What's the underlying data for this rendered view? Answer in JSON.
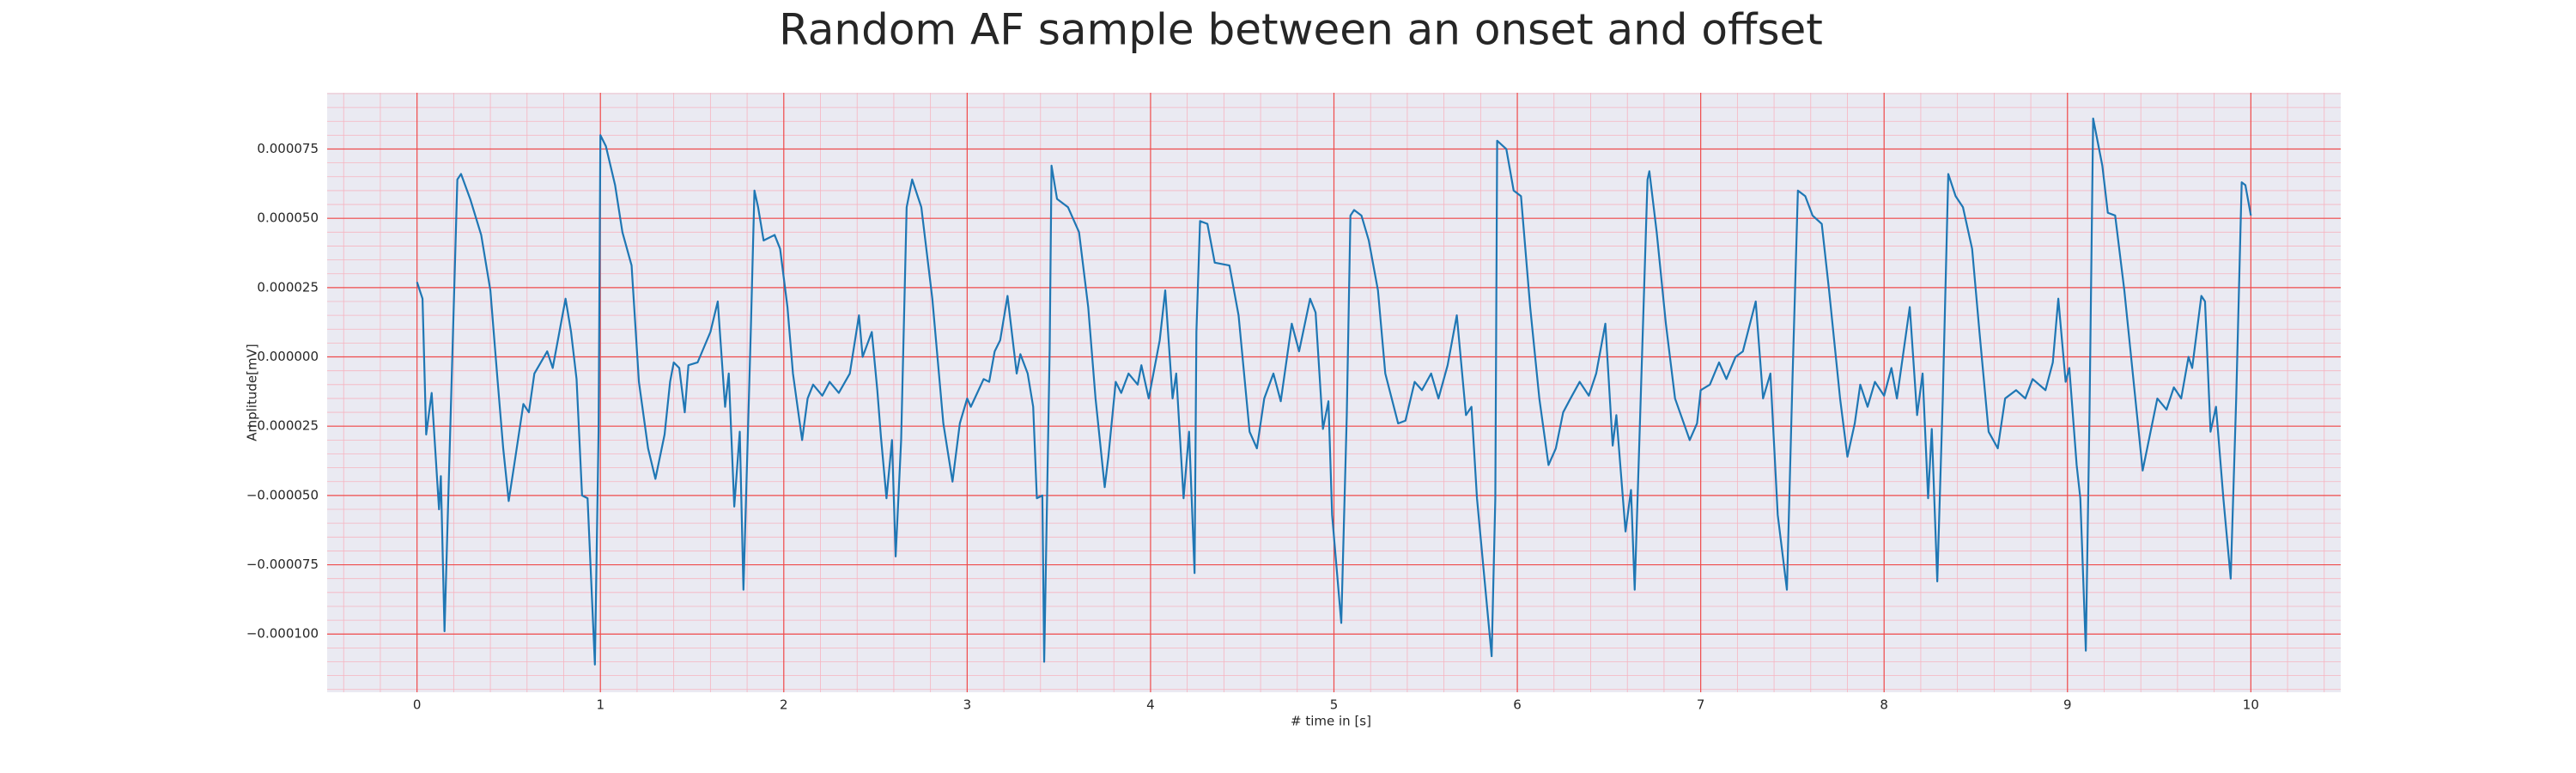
{
  "chart_data": {
    "type": "line",
    "title": "Random AF sample between an onset and offset",
    "xlabel": "# time in [s]",
    "ylabel": "Amplitude[mV]",
    "color": "#1f77b4",
    "grid": true,
    "minor_grid": true,
    "xlim": [
      -0.49,
      10.49
    ],
    "ylim": [
      -0.000121,
      9.53e-05
    ],
    "xticks": [
      0,
      1,
      2,
      3,
      4,
      5,
      6,
      7,
      8,
      9,
      10
    ],
    "yticks": [
      {
        "value": -0.0001,
        "label": "−0.000100"
      },
      {
        "value": -7.5e-05,
        "label": "−0.000075"
      },
      {
        "value": -5e-05,
        "label": "−0.000050"
      },
      {
        "value": -2.5e-05,
        "label": "−0.000025"
      },
      {
        "value": 0,
        "label": "0.000000"
      },
      {
        "value": 2.5e-05,
        "label": "0.000025"
      },
      {
        "value": 5e-05,
        "label": "0.000050"
      },
      {
        "value": 7.5e-05,
        "label": "0.000075"
      }
    ],
    "x": [
      0,
      0.03,
      0.05,
      0.08,
      0.12,
      0.13,
      0.15,
      0.22,
      0.24,
      0.29,
      0.35,
      0.4,
      0.44,
      0.47,
      0.5,
      0.53,
      0.58,
      0.61,
      0.64,
      0.71,
      0.74,
      0.81,
      0.84,
      0.87,
      0.9,
      0.93,
      0.97,
      0.99,
      1.0,
      1.03,
      1.08,
      1.12,
      1.17,
      1.21,
      1.26,
      1.3,
      1.35,
      1.38,
      1.4,
      1.43,
      1.46,
      1.48,
      1.53,
      1.6,
      1.64,
      1.68,
      1.7,
      1.73,
      1.76,
      1.78,
      1.82,
      1.84,
      1.86,
      1.89,
      1.95,
      1.98,
      2.02,
      2.05,
      2.1,
      2.13,
      2.16,
      2.21,
      2.25,
      2.3,
      2.36,
      2.41,
      2.43,
      2.48,
      2.51,
      2.53,
      2.56,
      2.59,
      2.61,
      2.64,
      2.67,
      2.7,
      2.75,
      2.81,
      2.87,
      2.92,
      2.96,
      3.0,
      3.02,
      3.09,
      3.12,
      3.15,
      3.18,
      3.22,
      3.27,
      3.29,
      3.33,
      3.36,
      3.38,
      3.41,
      3.42,
      3.45,
      3.46,
      3.49,
      3.55,
      3.61,
      3.66,
      3.7,
      3.75,
      3.77,
      3.81,
      3.84,
      3.88,
      3.93,
      3.95,
      3.99,
      4.05,
      4.08,
      4.12,
      4.14,
      4.18,
      4.21,
      4.24,
      4.25,
      4.27,
      4.31,
      4.35,
      4.43,
      4.48,
      4.54,
      4.58,
      4.62,
      4.67,
      4.71,
      4.77,
      4.81,
      4.87,
      4.9,
      4.94,
      4.97,
      4.99,
      5.04,
      5.07,
      5.09,
      5.11,
      5.15,
      5.19,
      5.24,
      5.28,
      5.35,
      5.39,
      5.44,
      5.48,
      5.53,
      5.57,
      5.62,
      5.67,
      5.72,
      5.75,
      5.78,
      5.86,
      5.88,
      5.89,
      5.94,
      5.98,
      6.02,
      6.07,
      6.12,
      6.17,
      6.21,
      6.25,
      6.29,
      6.34,
      6.39,
      6.43,
      6.48,
      6.52,
      6.54,
      6.59,
      6.62,
      6.64,
      6.67,
      6.71,
      6.72,
      6.76,
      6.81,
      6.86,
      6.94,
      6.98,
      7.0,
      7.05,
      7.1,
      7.14,
      7.19,
      7.23,
      7.3,
      7.34,
      7.38,
      7.42,
      7.47,
      7.5,
      7.53,
      7.57,
      7.61,
      7.66,
      7.7,
      7.76,
      7.8,
      7.84,
      7.87,
      7.91,
      7.95,
      8.0,
      8.04,
      8.07,
      8.14,
      8.18,
      8.21,
      8.24,
      8.26,
      8.29,
      8.32,
      8.35,
      8.39,
      8.43,
      8.48,
      8.52,
      8.57,
      8.62,
      8.66,
      8.72,
      8.77,
      8.81,
      8.88,
      8.92,
      8.95,
      8.99,
      9.01,
      9.05,
      9.07,
      9.1,
      9.12,
      9.14,
      9.19,
      9.22,
      9.26,
      9.31,
      9.37,
      9.41,
      9.45,
      9.49,
      9.54,
      9.58,
      9.62,
      9.66,
      9.68,
      9.73,
      9.75,
      9.78,
      9.81,
      9.85,
      9.89,
      9.92,
      9.95,
      9.97,
      10.0
    ],
    "values": [
      2.7e-05,
      2.1e-05,
      -2.8e-05,
      -1.3e-05,
      -5.5e-05,
      -4.3e-05,
      -9.9e-05,
      6.4e-05,
      6.6e-05,
      5.7e-05,
      4.4e-05,
      2.4e-05,
      -9e-06,
      -3.3e-05,
      -5.2e-05,
      -3.9e-05,
      -1.7e-05,
      -2e-05,
      -6e-06,
      2e-06,
      -4e-06,
      2.1e-05,
      9e-06,
      -8e-06,
      -5e-05,
      -5.1e-05,
      -0.000111,
      -2.7e-05,
      8e-05,
      7.6e-05,
      6.2e-05,
      4.5e-05,
      3.3e-05,
      -9e-06,
      -3.3e-05,
      -4.4e-05,
      -2.8e-05,
      -9e-06,
      -2e-06,
      -4e-06,
      -2e-05,
      -3e-06,
      -2e-06,
      9e-06,
      2e-05,
      -1.8e-05,
      -6e-06,
      -5.4e-05,
      -2.7e-05,
      -8.4e-05,
      9e-06,
      6e-05,
      5.4e-05,
      4.2e-05,
      4.4e-05,
      3.9e-05,
      1.8e-05,
      -6e-06,
      -3e-05,
      -1.5e-05,
      -1e-05,
      -1.4e-05,
      -9e-06,
      -1.3e-05,
      -6e-06,
      1.5e-05,
      0,
      9e-06,
      -1.2e-05,
      -2.9e-05,
      -5.1e-05,
      -3e-05,
      -7.2e-05,
      -3e-05,
      5.4e-05,
      6.4e-05,
      5.4e-05,
      2.1e-05,
      -2.4e-05,
      -4.5e-05,
      -2.4e-05,
      -1.5e-05,
      -1.8e-05,
      -8e-06,
      -9e-06,
      2e-06,
      6e-06,
      2.2e-05,
      -6e-06,
      1e-06,
      -6e-06,
      -1.8e-05,
      -5.1e-05,
      -5e-05,
      -0.00011,
      3e-06,
      6.9e-05,
      5.7e-05,
      5.4e-05,
      4.5e-05,
      1.8e-05,
      -1.5e-05,
      -4.7e-05,
      -3.6e-05,
      -9e-06,
      -1.3e-05,
      -6e-06,
      -1e-05,
      -3e-06,
      -1.5e-05,
      6e-06,
      2.4e-05,
      -1.5e-05,
      -6e-06,
      -5.1e-05,
      -2.7e-05,
      -7.8e-05,
      9e-06,
      4.9e-05,
      4.8e-05,
      3.4e-05,
      3.3e-05,
      1.5e-05,
      -2.7e-05,
      -3.3e-05,
      -1.5e-05,
      -6e-06,
      -1.6e-05,
      1.2e-05,
      2e-06,
      2.1e-05,
      1.6e-05,
      -2.6e-05,
      -1.6e-05,
      -5.7e-05,
      -9.6e-05,
      -2.1e-05,
      5.1e-05,
      5.3e-05,
      5.1e-05,
      4.2e-05,
      2.4e-05,
      -6e-06,
      -2.4e-05,
      -2.3e-05,
      -9e-06,
      -1.2e-05,
      -6e-06,
      -1.5e-05,
      -3e-06,
      1.5e-05,
      -2.1e-05,
      -1.8e-05,
      -5.1e-05,
      -0.000108,
      -5.1e-05,
      7.8e-05,
      7.5e-05,
      6e-05,
      5.8e-05,
      1.8e-05,
      -1.5e-05,
      -3.9e-05,
      -3.3e-05,
      -2e-05,
      -1.5e-05,
      -9e-06,
      -1.4e-05,
      -6e-06,
      1.2e-05,
      -3.2e-05,
      -2.1e-05,
      -6.3e-05,
      -4.8e-05,
      -8.4e-05,
      -2.1e-05,
      6.4e-05,
      6.7e-05,
      4.5e-05,
      1.2e-05,
      -1.5e-05,
      -3e-05,
      -2.4e-05,
      -1.2e-05,
      -1e-05,
      -2e-06,
      -8e-06,
      0,
      2e-06,
      2e-05,
      -1.5e-05,
      -6e-06,
      -5.7e-05,
      -8.4e-05,
      -9e-06,
      6e-05,
      5.8e-05,
      5.1e-05,
      4.8e-05,
      2.4e-05,
      -1.5e-05,
      -3.6e-05,
      -2.4e-05,
      -1e-05,
      -1.8e-05,
      -9e-06,
      -1.4e-05,
      -4e-06,
      -1.5e-05,
      1.8e-05,
      -2.1e-05,
      -6e-06,
      -5.1e-05,
      -2.6e-05,
      -8.1e-05,
      -1.5e-05,
      6.6e-05,
      5.8e-05,
      5.4e-05,
      3.9e-05,
      9e-06,
      -2.7e-05,
      -3.3e-05,
      -1.5e-05,
      -1.2e-05,
      -1.5e-05,
      -8e-06,
      -1.2e-05,
      -2e-06,
      2.1e-05,
      -9e-06,
      -4e-06,
      -3.9e-05,
      -5.1e-05,
      -0.000106,
      -2.1e-05,
      8.6e-05,
      6.9e-05,
      5.2e-05,
      5.1e-05,
      2.4e-05,
      -1.5e-05,
      -4.1e-05,
      -2.8e-05,
      -1.5e-05,
      -1.9e-05,
      -1.1e-05,
      -1.5e-05,
      0,
      -4e-06,
      2.2e-05,
      2e-05,
      -2.7e-05,
      -1.8e-05,
      -5.1e-05,
      -8e-05,
      -1.5e-05,
      6.3e-05,
      6.2e-05,
      5.1e-05
    ]
  }
}
